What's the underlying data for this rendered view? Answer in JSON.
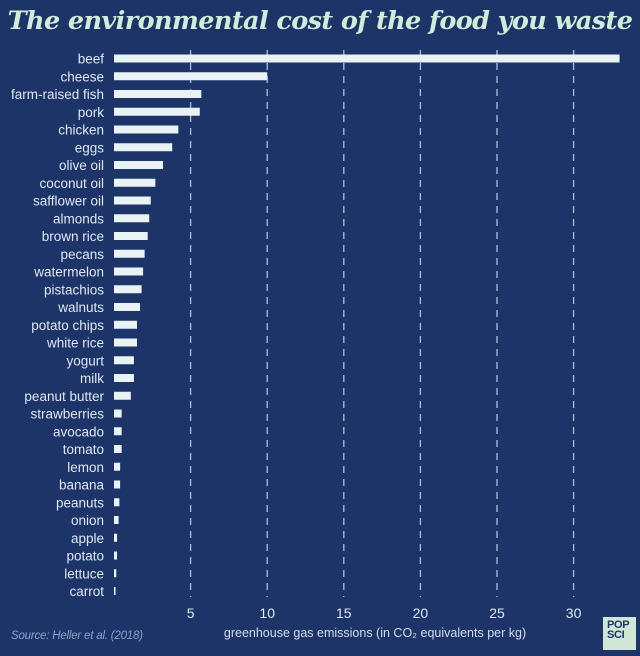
{
  "chart_data": {
    "type": "bar",
    "orientation": "horizontal",
    "title": "The environmental cost of the food you waste",
    "xlabel": "greenhouse gas emissions (in CO₂ equivalents per kg)",
    "ylabel": "",
    "xlim": [
      0,
      33
    ],
    "xticks": [
      5,
      10,
      15,
      20,
      25,
      30
    ],
    "grid": "vertical dashed",
    "categories": [
      "beef",
      "cheese",
      "farm-raised fish",
      "pork",
      "chicken",
      "eggs",
      "olive oil",
      "coconut oil",
      "safflower oil",
      "almonds",
      "brown rice",
      "pecans",
      "watermelon",
      "pistachios",
      "walnuts",
      "potato chips",
      "white rice",
      "yogurt",
      "milk",
      "peanut butter",
      "strawberries",
      "avocado",
      "tomato",
      "lemon",
      "banana",
      "peanuts",
      "onion",
      "apple",
      "potato",
      "lettuce",
      "carrot"
    ],
    "values": [
      33.0,
      10.0,
      5.7,
      5.6,
      4.2,
      3.8,
      3.2,
      2.7,
      2.4,
      2.3,
      2.2,
      2.0,
      1.9,
      1.8,
      1.7,
      1.5,
      1.5,
      1.3,
      1.3,
      1.1,
      0.5,
      0.5,
      0.5,
      0.4,
      0.4,
      0.35,
      0.3,
      0.2,
      0.2,
      0.15,
      0.1
    ],
    "source": "Source: Heller et al. (2018)"
  },
  "badge": {
    "line1": "POP",
    "line2": "SCI"
  },
  "colors": {
    "background": "#1c3467",
    "bar": "#e9f2f4",
    "title": "#d3ecd9",
    "badge_bg": "#d1e7d6"
  }
}
